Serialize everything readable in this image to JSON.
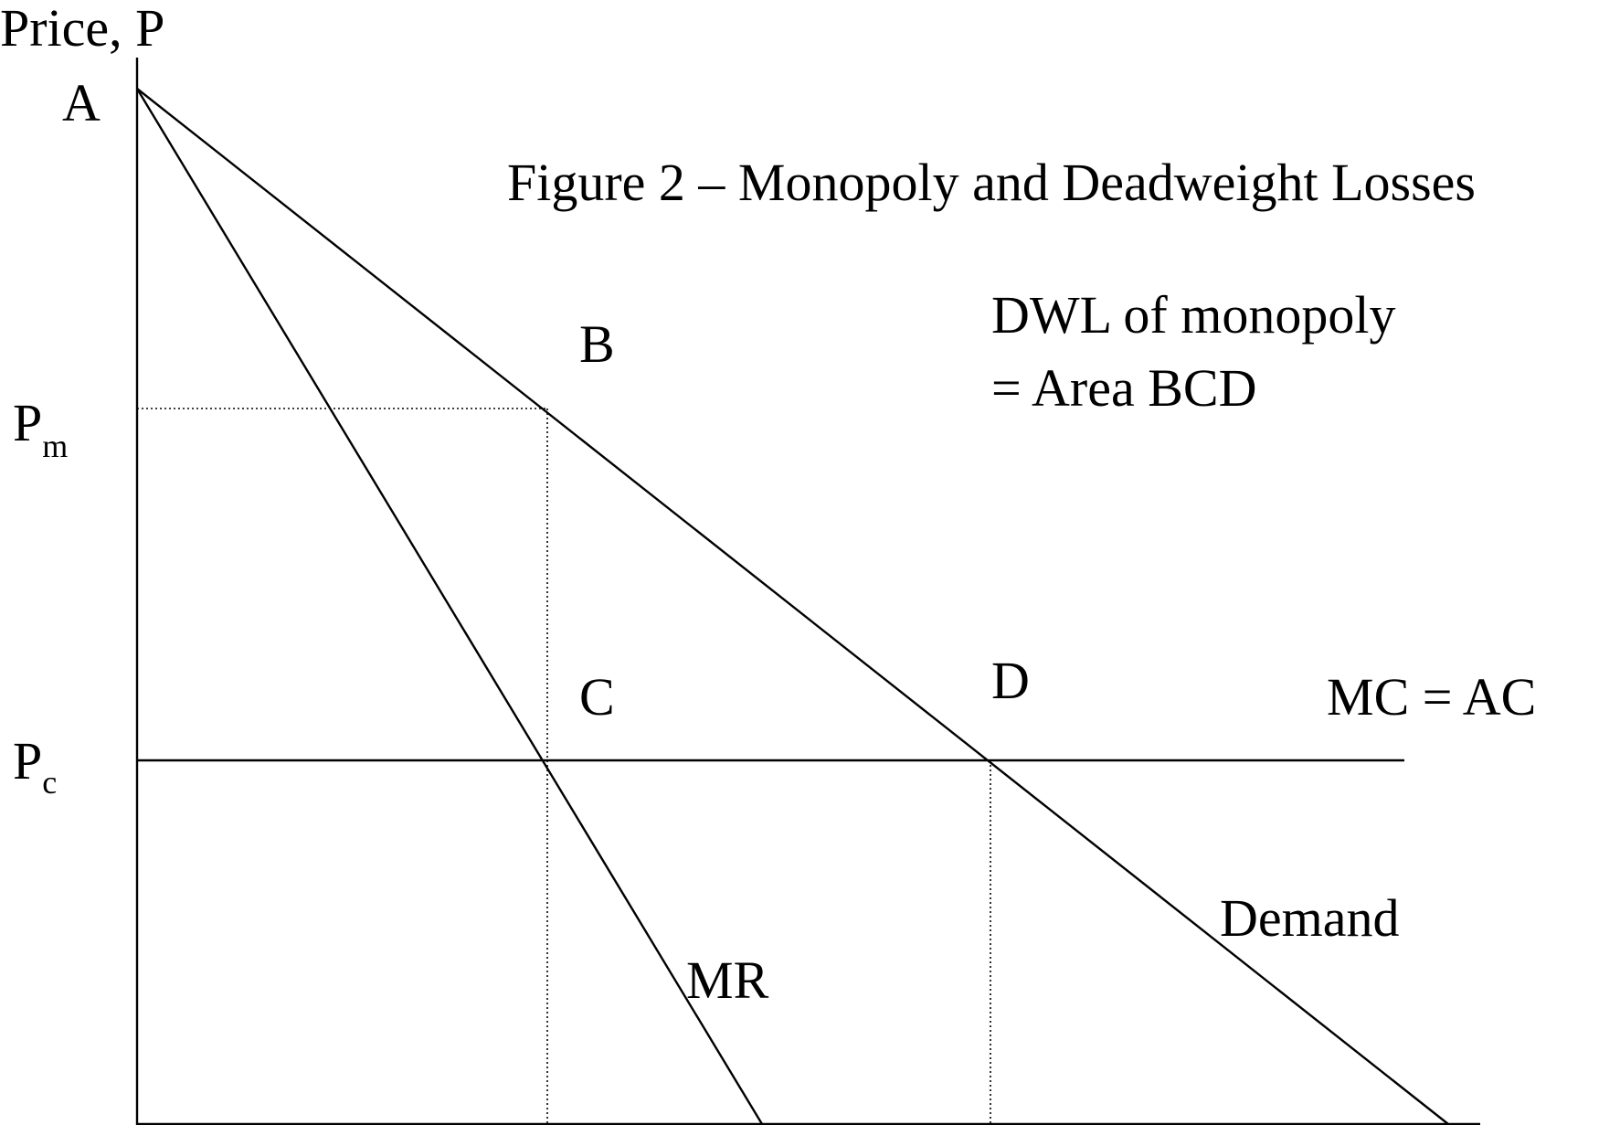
{
  "title": "Figure 2 – Monopoly and Deadweight Losses",
  "annotation": {
    "line1": "DWL of monopoly",
    "line2": "= Area BCD"
  },
  "axes": {
    "y_label": "Price, P"
  },
  "points": {
    "a": "A",
    "b": "B",
    "c": "C",
    "d": "D"
  },
  "price_levels": {
    "pm": {
      "base": "P",
      "subscript": "m"
    },
    "pc": {
      "base": "P",
      "subscript": "c"
    }
  },
  "curves": {
    "mc": "MC = AC",
    "demand": "Demand",
    "mr": "MR"
  }
}
